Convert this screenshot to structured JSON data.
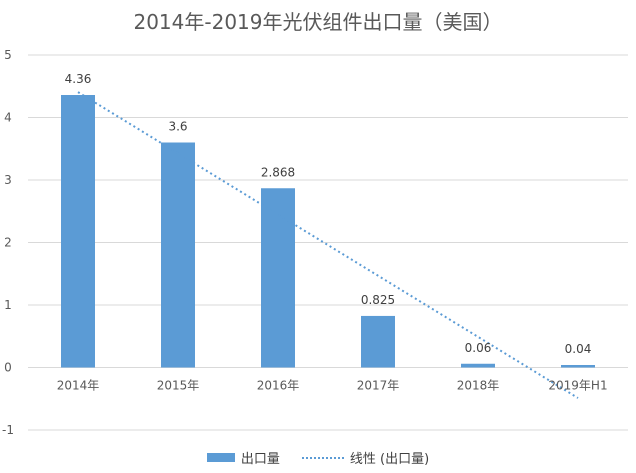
{
  "chart_data": {
    "type": "bar",
    "title": "2014年-2019年光伏组件出口量（美国）",
    "categories": [
      "2014年",
      "2015年",
      "2016年",
      "2017年",
      "2018年",
      "2019年H1"
    ],
    "series": [
      {
        "name": "出口量",
        "type": "bar",
        "values": [
          4.36,
          3.6,
          2.868,
          0.825,
          0.06,
          0.04
        ],
        "data_labels": [
          "4.36",
          "3.6",
          "2.868",
          "0.825",
          "0.06",
          "0.04"
        ]
      }
    ],
    "trendline": {
      "name": "线性 (出口量)",
      "kind": "linear",
      "style": "dotted"
    },
    "ylim": [
      -1,
      5
    ],
    "yticks": [
      "-1",
      "0",
      "1",
      "2",
      "3",
      "4",
      "5"
    ],
    "grid": true,
    "legend_position": "bottom",
    "colors": {
      "bar": "#5b9bd5",
      "trendline": "#5b9bd5",
      "grid": "#d9d9d9",
      "text": "#595959"
    }
  }
}
